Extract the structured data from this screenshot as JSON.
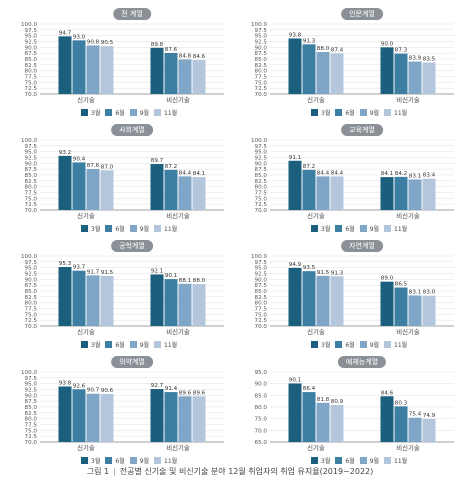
{
  "caption": {
    "figure_label": "그림 1",
    "text": "전공별 신기술 및 비신기술 분야 12월 취업자의 취업 유지율(2019~2022)"
  },
  "colors": [
    "#1a5f7e",
    "#3d7fa3",
    "#7fa6c7",
    "#b3c6dc"
  ],
  "chart_data": [
    {
      "type": "bar",
      "title": "전 계열",
      "categories": [
        "신기술",
        "비신기술"
      ],
      "ylim": [
        70,
        100
      ],
      "yticks": [
        70,
        72.5,
        75,
        77.5,
        80,
        82.5,
        85,
        87.5,
        90,
        92.5,
        95,
        97.5,
        100
      ],
      "series": [
        {
          "name": "3월",
          "values": [
            94.7,
            89.8
          ]
        },
        {
          "name": "6월",
          "values": [
            93.0,
            87.6
          ]
        },
        {
          "name": "9월",
          "values": [
            90.8,
            84.8
          ]
        },
        {
          "name": "11월",
          "values": [
            90.5,
            84.6
          ]
        }
      ]
    },
    {
      "type": "bar",
      "title": "인문계열",
      "categories": [
        "신기술",
        "비신기술"
      ],
      "ylim": [
        70,
        100
      ],
      "yticks": [
        70,
        72.5,
        75,
        77.5,
        80,
        82.5,
        85,
        87.5,
        90,
        92.5,
        95,
        97.5,
        100
      ],
      "series": [
        {
          "name": "3월",
          "values": [
            93.8,
            90.0
          ]
        },
        {
          "name": "6월",
          "values": [
            91.3,
            87.3
          ]
        },
        {
          "name": "9월",
          "values": [
            88.0,
            83.9
          ]
        },
        {
          "name": "11월",
          "values": [
            87.4,
            83.5
          ]
        }
      ]
    },
    {
      "type": "bar",
      "title": "사회계열",
      "categories": [
        "신기술",
        "비신기술"
      ],
      "ylim": [
        70,
        100
      ],
      "yticks": [
        70,
        72.5,
        75,
        77.5,
        80,
        82.5,
        85,
        87.5,
        90,
        92.5,
        95,
        97.5,
        100
      ],
      "series": [
        {
          "name": "3월",
          "values": [
            93.2,
            89.7
          ]
        },
        {
          "name": "6월",
          "values": [
            90.4,
            87.2
          ]
        },
        {
          "name": "9월",
          "values": [
            87.6,
            84.4
          ]
        },
        {
          "name": "11월",
          "values": [
            87.0,
            84.1
          ]
        }
      ]
    },
    {
      "type": "bar",
      "title": "교육계열",
      "categories": [
        "신기술",
        "비신기술"
      ],
      "ylim": [
        70,
        100
      ],
      "yticks": [
        70,
        72.5,
        75,
        77.5,
        80,
        82.5,
        85,
        87.5,
        90,
        92.5,
        95,
        97.5,
        100
      ],
      "series": [
        {
          "name": "3월",
          "values": [
            91.1,
            84.1
          ]
        },
        {
          "name": "6월",
          "values": [
            87.2,
            84.2
          ]
        },
        {
          "name": "9월",
          "values": [
            84.4,
            83.1
          ]
        },
        {
          "name": "11월",
          "values": [
            84.4,
            83.4
          ]
        }
      ]
    },
    {
      "type": "bar",
      "title": "공학계열",
      "categories": [
        "신기술",
        "비신기술"
      ],
      "ylim": [
        70,
        100
      ],
      "yticks": [
        70,
        72.5,
        75,
        77.5,
        80,
        82.5,
        85,
        87.5,
        90,
        92.5,
        95,
        97.5,
        100
      ],
      "series": [
        {
          "name": "3월",
          "values": [
            95.3,
            92.1
          ]
        },
        {
          "name": "6월",
          "values": [
            93.7,
            90.1
          ]
        },
        {
          "name": "9월",
          "values": [
            91.7,
            88.1
          ]
        },
        {
          "name": "11월",
          "values": [
            91.5,
            88.0
          ]
        }
      ]
    },
    {
      "type": "bar",
      "title": "자연계열",
      "categories": [
        "신기술",
        "비신기술"
      ],
      "ylim": [
        70,
        100
      ],
      "yticks": [
        70,
        72.5,
        75,
        77.5,
        80,
        82.5,
        85,
        87.5,
        90,
        92.5,
        95,
        97.5,
        100
      ],
      "series": [
        {
          "name": "3월",
          "values": [
            94.9,
            89.0
          ]
        },
        {
          "name": "6월",
          "values": [
            93.5,
            86.5
          ]
        },
        {
          "name": "9월",
          "values": [
            91.5,
            83.1
          ]
        },
        {
          "name": "11월",
          "values": [
            91.3,
            83.0
          ]
        }
      ]
    },
    {
      "type": "bar",
      "title": "의약계열",
      "categories": [
        "신기술",
        "비신기술"
      ],
      "ylim": [
        70,
        100
      ],
      "yticks": [
        70,
        72.5,
        75,
        77.5,
        80,
        82.5,
        85,
        87.5,
        90,
        92.5,
        95,
        97.5,
        100
      ],
      "series": [
        {
          "name": "3월",
          "values": [
            93.8,
            92.7
          ]
        },
        {
          "name": "6월",
          "values": [
            92.6,
            91.4
          ]
        },
        {
          "name": "9월",
          "values": [
            90.7,
            89.6
          ]
        },
        {
          "name": "11월",
          "values": [
            90.6,
            89.6
          ]
        }
      ]
    },
    {
      "type": "bar",
      "title": "예체능계열",
      "categories": [
        "신기술",
        "비신기술"
      ],
      "ylim": [
        65,
        95
      ],
      "yticks": [
        65,
        70,
        75,
        80,
        85,
        90,
        95
      ],
      "series": [
        {
          "name": "3월",
          "values": [
            90.1,
            84.6
          ]
        },
        {
          "name": "6월",
          "values": [
            86.4,
            80.3
          ]
        },
        {
          "name": "9월",
          "values": [
            81.8,
            75.4
          ]
        },
        {
          "name": "11월",
          "values": [
            80.9,
            74.9
          ]
        }
      ]
    }
  ]
}
